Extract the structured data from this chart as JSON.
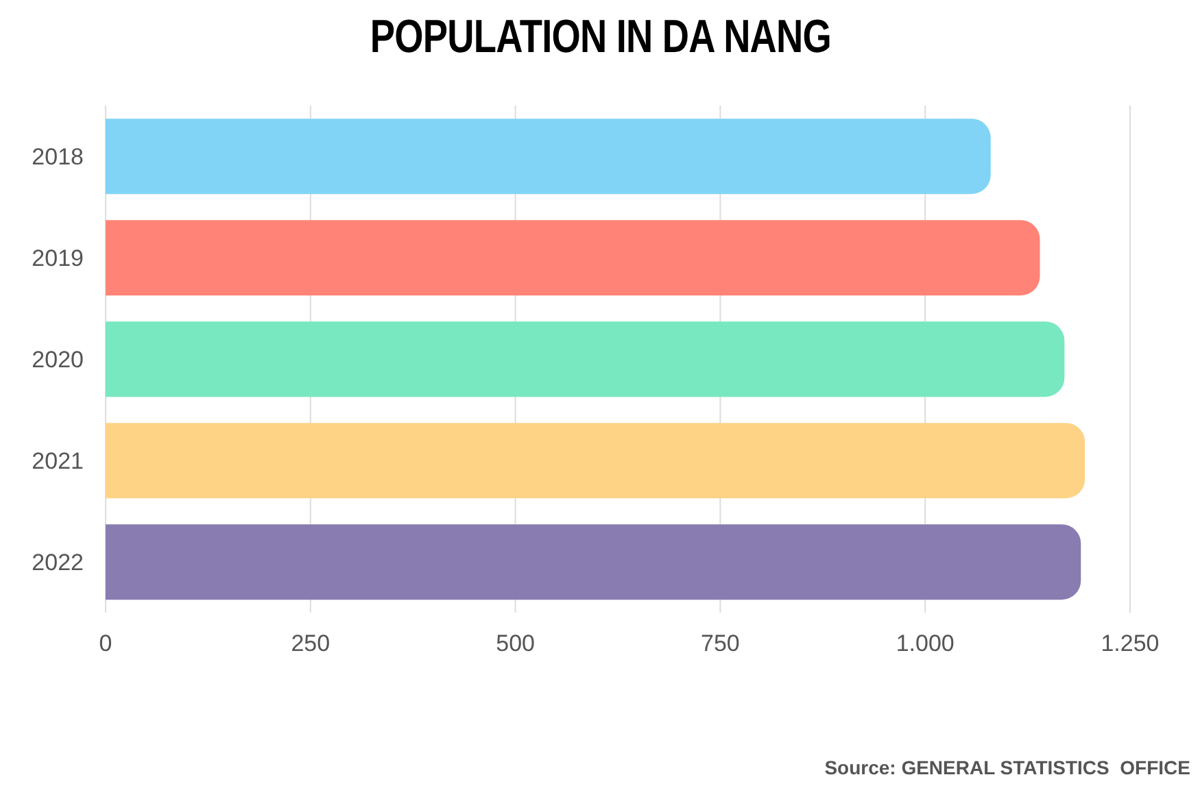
{
  "chart_data": {
    "type": "bar",
    "orientation": "horizontal",
    "title": "POPULATION IN DA NANG",
    "categories": [
      "2018",
      "2019",
      "2020",
      "2021",
      "2022"
    ],
    "values": [
      1080,
      1140,
      1170,
      1195,
      1190
    ],
    "colors": [
      "#81d4f5",
      "#ff8477",
      "#78e8c1",
      "#fed385",
      "#887cb0"
    ],
    "xlim": [
      0,
      1250
    ],
    "xticks": [
      0,
      250,
      500,
      750,
      {
        "value": 1000,
        "label": "1.000"
      },
      {
        "value": 1250,
        "label": "1.250"
      }
    ],
    "grid": "x",
    "annotations": [
      "Source: GENERAL STATISTICS  OFFICE"
    ]
  }
}
